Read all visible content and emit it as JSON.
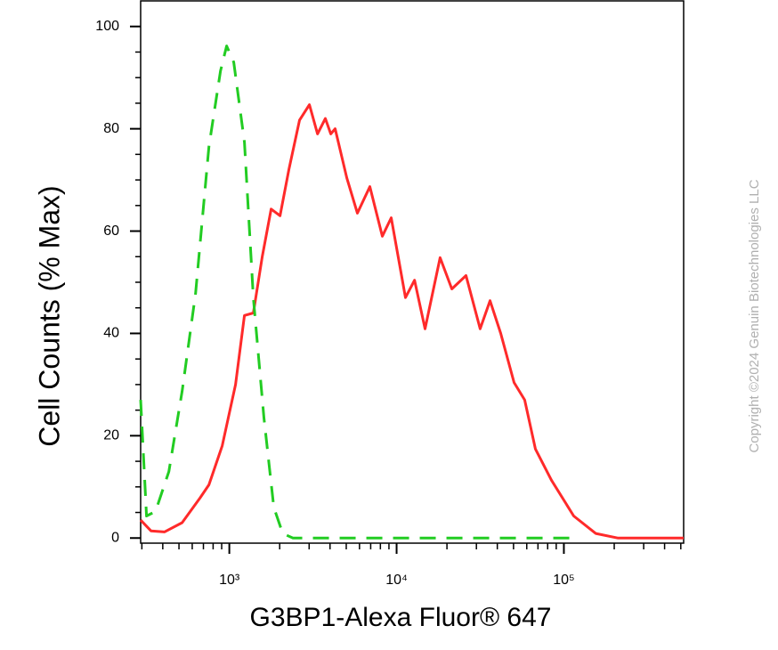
{
  "chart_data": {
    "type": "line",
    "x_label": "G3BP1-Alexa Fluor® 647",
    "y_label": "Cell Counts (% Max)",
    "copyright": "Copyright ©2024 Genuin Biotechnologies LLC",
    "xscale": "log",
    "xlim": [
      295,
      520000
    ],
    "ylim": [
      -1,
      105
    ],
    "xticks": [
      {
        "value": 1000,
        "label": "10³"
      },
      {
        "value": 10000,
        "label": "10⁴"
      },
      {
        "value": 100000,
        "label": "10⁵"
      }
    ],
    "xminor_ticks": [
      300,
      400,
      500,
      600,
      700,
      800,
      900,
      2000,
      3000,
      4000,
      5000,
      6000,
      7000,
      8000,
      9000,
      20000,
      30000,
      40000,
      50000,
      60000,
      70000,
      80000,
      90000,
      200000,
      300000,
      400000,
      500000
    ],
    "yticks": [
      0,
      20,
      40,
      60,
      80,
      100
    ],
    "yminor_ticks": [
      5,
      10,
      15,
      25,
      30,
      35,
      45,
      50,
      55,
      65,
      70,
      75,
      85,
      90,
      95
    ],
    "series": [
      {
        "color": "#ff2a2a",
        "dashed": false,
        "x": [
          295,
          340,
          409,
          522,
          667,
          755,
          906,
          1089,
          1231,
          1392,
          1574,
          1778,
          2010,
          2270,
          2630,
          3010,
          3365,
          3750,
          4040,
          4290,
          5040,
          5830,
          6920,
          8220,
          9290,
          11300,
          12800,
          14800,
          18200,
          21400,
          26000,
          31600,
          36200,
          41900,
          50400,
          58300,
          67600,
          84300,
          114500,
          155000,
          211000,
          520000
        ],
        "values": [
          3.5,
          1.4,
          1.2,
          3,
          7.8,
          10.4,
          18,
          30,
          43.5,
          44,
          55,
          64.3,
          63,
          72,
          81.7,
          84.7,
          79,
          82,
          79,
          80,
          70.4,
          63.5,
          68.7,
          59,
          62.6,
          47,
          50.4,
          40.9,
          54.8,
          48.7,
          51.3,
          40.9,
          46.4,
          40,
          30.4,
          27,
          17.4,
          11.3,
          4.3,
          0.9,
          0,
          0
        ]
      },
      {
        "color": "#22cc22",
        "dashed": true,
        "x": [
          295,
          320,
          362,
          435,
          522,
          628,
          755,
          885,
          964,
          1063,
          1231,
          1392,
          1611,
          1845,
          2085,
          2400,
          121600
        ],
        "values": [
          27,
          4.3,
          5.2,
          13,
          28.7,
          47.8,
          76.5,
          91.3,
          96.2,
          93,
          77.4,
          47,
          23.5,
          6,
          0.9,
          0,
          0
        ]
      }
    ]
  }
}
